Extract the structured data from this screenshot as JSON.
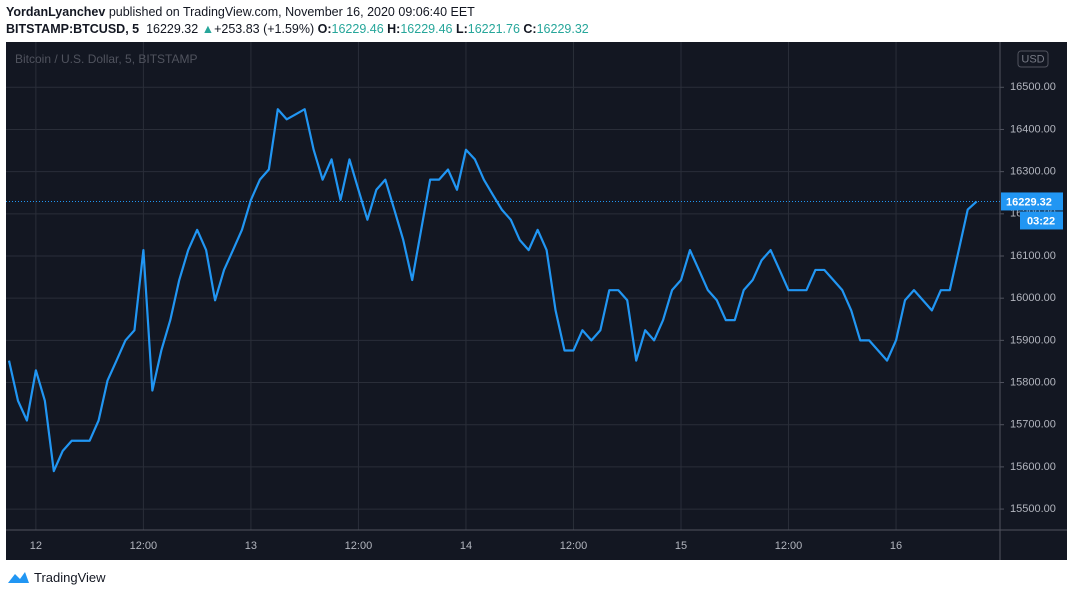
{
  "header": {
    "author": "YordanLyanchev",
    "published": "published on TradingView.com, November 16, 2020 09:06:40 EET",
    "symbol": "BITSTAMP:BTCUSD, 5",
    "last": 16229.32,
    "change": "+253.83 (+1.59%)",
    "ohlc": [
      {
        "label": "O:",
        "value": 16229.46
      },
      {
        "label": "H:",
        "value": 16229.46
      },
      {
        "label": "L:",
        "value": 16221.76
      },
      {
        "label": "C:",
        "value": 16229.32
      }
    ]
  },
  "chart_data": {
    "type": "line",
    "legend_title": "Bitcoin / U.S. Dollar, 5, BITSTAMP",
    "currency": "USD",
    "categories": [
      null,
      null,
      null,
      "12",
      null,
      null,
      null,
      null,
      null,
      null,
      null,
      null,
      null,
      null,
      null,
      "12:00",
      null,
      null,
      null,
      null,
      null,
      null,
      null,
      null,
      null,
      null,
      null,
      "13",
      null,
      null,
      null,
      null,
      null,
      null,
      null,
      null,
      null,
      null,
      null,
      "12:00",
      null,
      null,
      null,
      null,
      null,
      null,
      null,
      null,
      null,
      null,
      null,
      "14",
      null,
      null,
      null,
      null,
      null,
      null,
      null,
      null,
      null,
      null,
      null,
      "12:00",
      null,
      null,
      null,
      null,
      null,
      null,
      null,
      null,
      null,
      null,
      null,
      "15",
      null,
      null,
      null,
      null,
      null,
      null,
      null,
      null,
      null,
      null,
      null,
      "12:00",
      null,
      null,
      null,
      null,
      null,
      null,
      null,
      null,
      null,
      null,
      null,
      "16",
      null,
      null,
      null,
      null,
      null,
      null,
      null,
      null,
      null
    ],
    "series": [
      {
        "name": "BTCUSD",
        "color": "#2196f3",
        "values": [
          15852,
          15757,
          15710,
          15829,
          15757,
          15590,
          15638,
          15662,
          15662,
          15662,
          15710,
          15805,
          15852,
          15900,
          15924,
          16114,
          15781,
          15876,
          15948,
          16043,
          16114,
          16162,
          16114,
          15995,
          16067,
          16114,
          16162,
          16233,
          16281,
          16305,
          16448,
          16424,
          16436,
          16448,
          16352,
          16281,
          16329,
          16233,
          16329,
          16257,
          16186,
          16257,
          16281,
          16210,
          16138,
          16043,
          16162,
          16281,
          16281,
          16305,
          16257,
          16352,
          16329,
          16281,
          16245,
          16210,
          16186,
          16138,
          16114,
          16162,
          16114,
          15971,
          15876,
          15876,
          15924,
          15900,
          15924,
          16019,
          16019,
          15995,
          15852,
          15924,
          15900,
          15948,
          16019,
          16043,
          16114,
          16067,
          16019,
          15995,
          15948,
          15948,
          16019,
          16043,
          16090,
          16114,
          16067,
          16019,
          16019,
          16019,
          16067,
          16067,
          16043,
          16019,
          15971,
          15900,
          15900,
          15876,
          15852,
          15900,
          15995,
          16019,
          15995,
          15971,
          16019,
          16019,
          16114,
          16210,
          16229.32
        ]
      }
    ],
    "last_price": 16229.32,
    "countdown": "03:22",
    "ylim": [
      15448,
      16605
    ],
    "yticks": [
      {
        "value": 15500,
        "label": "15500.00"
      },
      {
        "value": 15600,
        "label": "15600.00"
      },
      {
        "value": 15700,
        "label": "15700.00"
      },
      {
        "value": 15800,
        "label": "15800.00"
      },
      {
        "value": 15900,
        "label": "15900.00"
      },
      {
        "value": 16000,
        "label": "16000.00"
      },
      {
        "value": 16100,
        "label": "16100.00"
      },
      {
        "value": 16200,
        "label": "16200.00"
      },
      {
        "value": 16300,
        "label": "16300.00"
      },
      {
        "value": 16400,
        "label": "16400.00"
      },
      {
        "value": 16500,
        "label": "16500.00"
      }
    ],
    "grid": true
  },
  "footer": {
    "brand": "TradingView"
  }
}
